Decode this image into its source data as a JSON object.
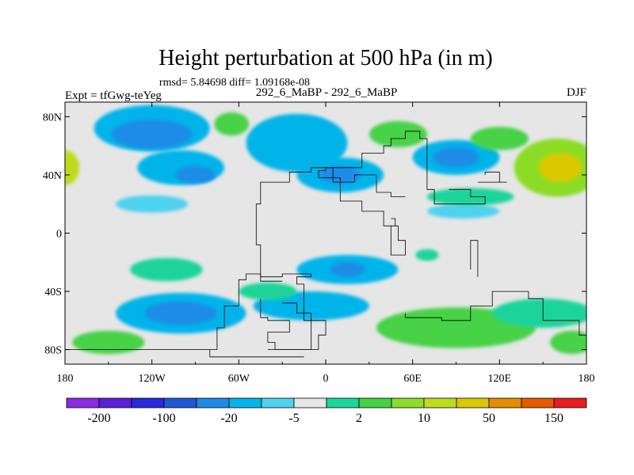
{
  "chart_data": {
    "type": "heatmap",
    "title": "Height perturbation at 500 hPa (in m)",
    "stats_text": "rmsd= 5.84698 diff= 1.09168e-08",
    "left_label": "Expt = tfGwg-teYeg",
    "center_label": "292_6_MaBP - 292_6_MaBP",
    "right_label": "DJF",
    "xlim": [
      -180,
      180
    ],
    "ylim": [
      -90,
      90
    ],
    "x_ticks": [
      {
        "value": -180,
        "label": "180"
      },
      {
        "value": -120,
        "label": "120W"
      },
      {
        "value": -60,
        "label": "60W"
      },
      {
        "value": 0,
        "label": "0"
      },
      {
        "value": 60,
        "label": "60E"
      },
      {
        "value": 120,
        "label": "120E"
      },
      {
        "value": 180,
        "label": "180"
      }
    ],
    "y_ticks": [
      {
        "value": 80,
        "label": "80N"
      },
      {
        "value": 40,
        "label": "40N"
      },
      {
        "value": 0,
        "label": "0"
      },
      {
        "value": -40,
        "label": "40S"
      },
      {
        "value": -80,
        "label": "80S"
      }
    ],
    "colorbar": {
      "levels": [
        -200,
        -150,
        -100,
        -50,
        -20,
        -10,
        -5,
        -2,
        2,
        5,
        10,
        20,
        50,
        100,
        150,
        200
      ],
      "labels": [
        {
          "after_box": 1,
          "text": "-200"
        },
        {
          "after_box": 3,
          "text": "-100"
        },
        {
          "after_box": 5,
          "text": "-20"
        },
        {
          "after_box": 7,
          "text": "-5"
        },
        {
          "after_box": 9,
          "text": "2"
        },
        {
          "after_box": 11,
          "text": "10"
        },
        {
          "after_box": 13,
          "text": "50"
        },
        {
          "after_box": 15,
          "text": "150"
        }
      ],
      "colors": [
        "#8a2be2",
        "#5a1fd6",
        "#2828dc",
        "#1e5ad2",
        "#1e8ce6",
        "#00b4ea",
        "#4fd2f0",
        "#e6e6e6",
        "#1ed49a",
        "#46d246",
        "#8cdc28",
        "#bedc1e",
        "#dcc800",
        "#e68c00",
        "#e65a00",
        "#e61e1e"
      ]
    },
    "background_color": "#e6e6e6",
    "regions": [
      {
        "lon": -120,
        "lat": 72,
        "rlon": 40,
        "rlat": 16,
        "color": "#00b4ea"
      },
      {
        "lon": -120,
        "lat": 68,
        "rlon": 28,
        "rlat": 10,
        "color": "#1e8ce6"
      },
      {
        "lon": -100,
        "lat": 45,
        "rlon": 30,
        "rlat": 12,
        "color": "#00b4ea"
      },
      {
        "lon": -90,
        "lat": 40,
        "rlon": 14,
        "rlat": 6,
        "color": "#1e8ce6"
      },
      {
        "lon": -20,
        "lat": 62,
        "rlon": 35,
        "rlat": 20,
        "color": "#00b4ea"
      },
      {
        "lon": 10,
        "lat": 40,
        "rlon": 30,
        "rlat": 12,
        "color": "#00b4ea"
      },
      {
        "lon": 10,
        "lat": 40,
        "rlon": 14,
        "rlat": 6,
        "color": "#1e8ce6"
      },
      {
        "lon": 90,
        "lat": 52,
        "rlon": 30,
        "rlat": 12,
        "color": "#00b4ea"
      },
      {
        "lon": 90,
        "lat": 52,
        "rlon": 16,
        "rlat": 7,
        "color": "#1e8ce6"
      },
      {
        "lon": -65,
        "lat": 75,
        "rlon": 12,
        "rlat": 8,
        "color": "#46d246"
      },
      {
        "lon": 50,
        "lat": 68,
        "rlon": 20,
        "rlat": 9,
        "color": "#46d246"
      },
      {
        "lon": 120,
        "lat": 65,
        "rlon": 20,
        "rlat": 8,
        "color": "#46d246"
      },
      {
        "lon": 160,
        "lat": 45,
        "rlon": 30,
        "rlat": 20,
        "color": "#8cdc28"
      },
      {
        "lon": 162,
        "lat": 45,
        "rlon": 15,
        "rlat": 10,
        "color": "#dcc800"
      },
      {
        "lon": -180,
        "lat": 45,
        "rlon": 10,
        "rlat": 12,
        "color": "#bedc1e"
      },
      {
        "lon": -120,
        "lat": 20,
        "rlon": 25,
        "rlat": 6,
        "color": "#4fd2f0"
      },
      {
        "lon": 95,
        "lat": 15,
        "rlon": 25,
        "rlat": 5,
        "color": "#4fd2f0"
      },
      {
        "lon": 100,
        "lat": 25,
        "rlon": 30,
        "rlat": 6,
        "color": "#1ed49a"
      },
      {
        "lon": -110,
        "lat": -25,
        "rlon": 25,
        "rlat": 8,
        "color": "#1ed49a"
      },
      {
        "lon": 15,
        "lat": -25,
        "rlon": 35,
        "rlat": 10,
        "color": "#00b4ea"
      },
      {
        "lon": 15,
        "lat": -25,
        "rlon": 12,
        "rlat": 5,
        "color": "#1e8ce6"
      },
      {
        "lon": -10,
        "lat": -50,
        "rlon": 40,
        "rlat": 10,
        "color": "#00b4ea"
      },
      {
        "lon": -100,
        "lat": -55,
        "rlon": 45,
        "rlat": 14,
        "color": "#00b4ea"
      },
      {
        "lon": -100,
        "lat": -55,
        "rlon": 25,
        "rlat": 8,
        "color": "#1e8ce6"
      },
      {
        "lon": 90,
        "lat": -65,
        "rlon": 55,
        "rlat": 14,
        "color": "#46d246"
      },
      {
        "lon": 150,
        "lat": -55,
        "rlon": 35,
        "rlat": 10,
        "color": "#1ed49a"
      },
      {
        "lon": -150,
        "lat": -75,
        "rlon": 25,
        "rlat": 8,
        "color": "#46d246"
      },
      {
        "lon": -40,
        "lat": -40,
        "rlon": 20,
        "rlat": 6,
        "color": "#1ed49a"
      },
      {
        "lon": 70,
        "lat": -15,
        "rlon": 8,
        "rlat": 4,
        "color": "#1ed49a"
      },
      {
        "lon": 170,
        "lat": -75,
        "rlon": 15,
        "rlat": 8,
        "color": "#46d246"
      }
    ],
    "outlines": [
      [
        [
          -40,
          -80
        ],
        [
          -5,
          -80
        ],
        [
          0,
          -70
        ],
        [
          -15,
          -60
        ],
        [
          -20,
          -35
        ],
        [
          -10,
          -30
        ],
        [
          -30,
          -28
        ],
        [
          -45,
          -30
        ],
        [
          -48,
          -8
        ],
        [
          -45,
          20
        ],
        [
          -25,
          35
        ],
        [
          -10,
          42
        ],
        [
          5,
          45
        ],
        [
          20,
          35
        ],
        [
          35,
          40
        ],
        [
          45,
          28
        ],
        [
          55,
          25
        ]
      ],
      [
        [
          -5,
          42
        ],
        [
          10,
          38
        ],
        [
          25,
          22
        ],
        [
          40,
          15
        ],
        [
          50,
          5
        ],
        [
          55,
          -5
        ],
        [
          45,
          -15
        ],
        [
          48,
          5
        ],
        [
          45,
          10
        ]
      ],
      [
        [
          -5,
          40
        ],
        [
          0,
          43
        ],
        [
          25,
          45
        ],
        [
          40,
          55
        ],
        [
          45,
          60
        ],
        [
          55,
          65
        ],
        [
          65,
          70
        ],
        [
          70,
          65
        ],
        [
          75,
          30
        ],
        [
          100,
          20
        ],
        [
          110,
          20
        ],
        [
          100,
          25
        ],
        [
          85,
          30
        ]
      ],
      [
        [
          110,
          40
        ],
        [
          120,
          42
        ],
        [
          125,
          35
        ],
        [
          105,
          35
        ]
      ],
      [
        [
          100,
          -25
        ],
        [
          105,
          -5
        ],
        [
          105,
          -30
        ]
      ],
      [
        [
          -45,
          -45
        ],
        [
          -40,
          -58
        ],
        [
          -25,
          -60
        ],
        [
          -40,
          -68
        ],
        [
          -35,
          -75
        ],
        [
          -20,
          -80
        ],
        [
          -10,
          -80
        ],
        [
          -20,
          -55
        ],
        [
          -30,
          -48
        ]
      ],
      [
        [
          -75,
          -80
        ],
        [
          -70,
          -65
        ],
        [
          -60,
          -50
        ],
        [
          -55,
          -32
        ],
        [
          -45,
          -28
        ],
        [
          -30,
          -33
        ]
      ],
      [
        [
          -180,
          -82
        ],
        [
          -90,
          -80
        ],
        [
          -75,
          -80
        ]
      ],
      [
        [
          55,
          -55
        ],
        [
          80,
          -58
        ],
        [
          100,
          -60
        ],
        [
          115,
          -50
        ],
        [
          140,
          -40
        ],
        [
          150,
          -45
        ],
        [
          155,
          -60
        ],
        [
          175,
          -60
        ],
        [
          180,
          -70
        ]
      ],
      [
        [
          -80,
          -80
        ],
        [
          -35,
          -85
        ],
        [
          -15,
          -85
        ]
      ]
    ]
  }
}
